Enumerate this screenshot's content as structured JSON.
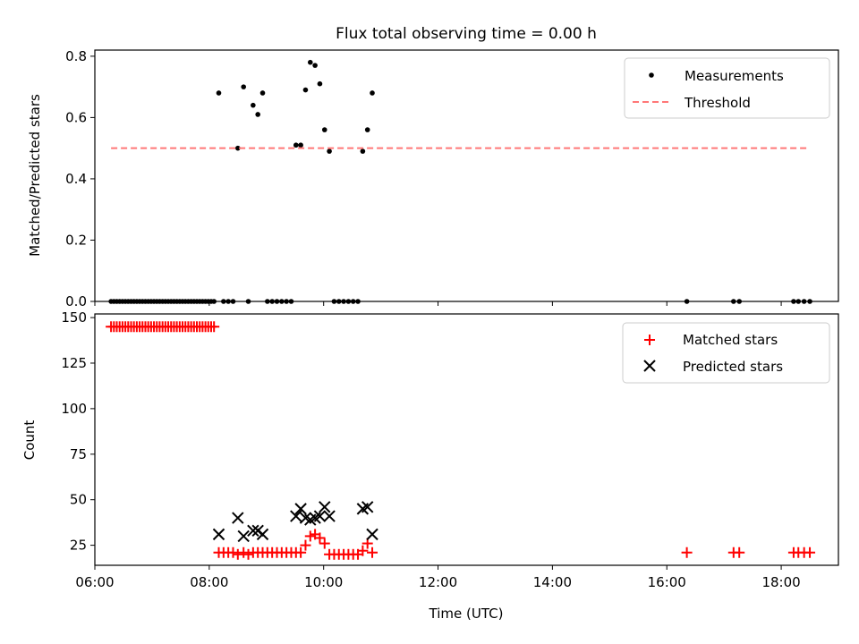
{
  "title": "Flux total observing time = 0.00 h",
  "chart_data": [
    {
      "type": "scatter",
      "ylabel": "Matched/Predicted stars",
      "xlabel": "",
      "xlim": [
        "06:00",
        "19:00"
      ],
      "ylim": [
        0,
        0.82
      ],
      "yticks": [
        "0.0",
        "0.2",
        "0.4",
        "0.6",
        "0.8"
      ],
      "legend_position": "top-right",
      "grid": false,
      "series": [
        {
          "name": "Measurements",
          "kind": "scatter",
          "color": "#000000",
          "points": [
            [
              "06:17",
              0
            ],
            [
              "06:20",
              0
            ],
            [
              "06:23",
              0
            ],
            [
              "06:26",
              0
            ],
            [
              "06:29",
              0
            ],
            [
              "06:32",
              0
            ],
            [
              "06:35",
              0
            ],
            [
              "06:38",
              0
            ],
            [
              "06:41",
              0
            ],
            [
              "06:44",
              0
            ],
            [
              "06:47",
              0
            ],
            [
              "06:50",
              0
            ],
            [
              "06:53",
              0
            ],
            [
              "06:56",
              0
            ],
            [
              "06:59",
              0
            ],
            [
              "07:02",
              0
            ],
            [
              "07:05",
              0
            ],
            [
              "07:08",
              0
            ],
            [
              "07:11",
              0
            ],
            [
              "07:14",
              0
            ],
            [
              "07:17",
              0
            ],
            [
              "07:20",
              0
            ],
            [
              "07:23",
              0
            ],
            [
              "07:26",
              0
            ],
            [
              "07:29",
              0
            ],
            [
              "07:32",
              0
            ],
            [
              "07:35",
              0
            ],
            [
              "07:38",
              0
            ],
            [
              "07:41",
              0
            ],
            [
              "07:44",
              0
            ],
            [
              "07:47",
              0
            ],
            [
              "07:50",
              0
            ],
            [
              "07:53",
              0
            ],
            [
              "07:56",
              0
            ],
            [
              "07:59",
              0
            ],
            [
              "08:02",
              0
            ],
            [
              "08:05",
              0
            ],
            [
              "08:10",
              0.68
            ],
            [
              "08:15",
              0
            ],
            [
              "08:20",
              0
            ],
            [
              "08:25",
              0
            ],
            [
              "08:30",
              0.5
            ],
            [
              "08:36",
              0.7
            ],
            [
              "08:41",
              0
            ],
            [
              "08:46",
              0.64
            ],
            [
              "08:51",
              0.61
            ],
            [
              "08:56",
              0.68
            ],
            [
              "09:01",
              0
            ],
            [
              "09:06",
              0
            ],
            [
              "09:11",
              0
            ],
            [
              "09:16",
              0
            ],
            [
              "09:21",
              0
            ],
            [
              "09:26",
              0
            ],
            [
              "09:31",
              0.51
            ],
            [
              "09:36",
              0.51
            ],
            [
              "09:41",
              0.69
            ],
            [
              "09:46",
              0.78
            ],
            [
              "09:51",
              0.77
            ],
            [
              "09:56",
              0.71
            ],
            [
              "10:01",
              0.56
            ],
            [
              "10:06",
              0.49
            ],
            [
              "10:11",
              0
            ],
            [
              "10:16",
              0
            ],
            [
              "10:21",
              0
            ],
            [
              "10:26",
              0
            ],
            [
              "10:31",
              0
            ],
            [
              "10:36",
              0
            ],
            [
              "10:41",
              0.49
            ],
            [
              "10:46",
              0.56
            ],
            [
              "10:51",
              0.68
            ],
            [
              "16:21",
              0
            ],
            [
              "17:10",
              0
            ],
            [
              "17:16",
              0
            ],
            [
              "18:13",
              0
            ],
            [
              "18:18",
              0
            ],
            [
              "18:24",
              0
            ],
            [
              "18:30",
              0
            ]
          ]
        },
        {
          "name": "Threshold",
          "kind": "line",
          "color": "#ff7777",
          "dash": true,
          "x": [
            "06:17",
            "18:30"
          ],
          "y": [
            0.5,
            0.5
          ]
        }
      ]
    },
    {
      "type": "scatter",
      "ylabel": "Count",
      "xlabel": "Time (UTC)",
      "xlim": [
        "06:00",
        "19:00"
      ],
      "ylim": [
        14,
        152
      ],
      "yticks": [
        "25",
        "50",
        "75",
        "100",
        "125",
        "150"
      ],
      "xticks": [
        "06:00",
        "08:00",
        "10:00",
        "12:00",
        "14:00",
        "16:00",
        "18:00"
      ],
      "legend_position": "top-right",
      "grid": false,
      "series": [
        {
          "name": "Matched stars",
          "kind": "plus",
          "color": "#ff0000",
          "points": [
            [
              "06:17",
              145
            ],
            [
              "06:20",
              145
            ],
            [
              "06:23",
              145
            ],
            [
              "06:26",
              145
            ],
            [
              "06:29",
              145
            ],
            [
              "06:32",
              145
            ],
            [
              "06:35",
              145
            ],
            [
              "06:38",
              145
            ],
            [
              "06:41",
              145
            ],
            [
              "06:44",
              145
            ],
            [
              "06:47",
              145
            ],
            [
              "06:50",
              145
            ],
            [
              "06:53",
              145
            ],
            [
              "06:56",
              145
            ],
            [
              "06:59",
              145
            ],
            [
              "07:02",
              145
            ],
            [
              "07:05",
              145
            ],
            [
              "07:08",
              145
            ],
            [
              "07:11",
              145
            ],
            [
              "07:14",
              145
            ],
            [
              "07:17",
              145
            ],
            [
              "07:20",
              145
            ],
            [
              "07:23",
              145
            ],
            [
              "07:26",
              145
            ],
            [
              "07:29",
              145
            ],
            [
              "07:32",
              145
            ],
            [
              "07:35",
              145
            ],
            [
              "07:38",
              145
            ],
            [
              "07:41",
              145
            ],
            [
              "07:44",
              145
            ],
            [
              "07:47",
              145
            ],
            [
              "07:50",
              145
            ],
            [
              "07:53",
              145
            ],
            [
              "07:56",
              145
            ],
            [
              "07:59",
              145
            ],
            [
              "08:02",
              145
            ],
            [
              "08:05",
              145
            ],
            [
              "08:10",
              21
            ],
            [
              "08:15",
              21
            ],
            [
              "08:20",
              21
            ],
            [
              "08:25",
              21
            ],
            [
              "08:30",
              20
            ],
            [
              "08:36",
              21
            ],
            [
              "08:41",
              20
            ],
            [
              "08:46",
              21
            ],
            [
              "08:51",
              21
            ],
            [
              "08:56",
              21
            ],
            [
              "09:01",
              21
            ],
            [
              "09:06",
              21
            ],
            [
              "09:11",
              21
            ],
            [
              "09:16",
              21
            ],
            [
              "09:21",
              21
            ],
            [
              "09:26",
              21
            ],
            [
              "09:31",
              21
            ],
            [
              "09:36",
              21
            ],
            [
              "09:41",
              25
            ],
            [
              "09:46",
              30
            ],
            [
              "09:51",
              31
            ],
            [
              "09:56",
              29
            ],
            [
              "10:01",
              26
            ],
            [
              "10:06",
              20
            ],
            [
              "10:11",
              20
            ],
            [
              "10:16",
              20
            ],
            [
              "10:21",
              20
            ],
            [
              "10:26",
              20
            ],
            [
              "10:31",
              20
            ],
            [
              "10:36",
              20
            ],
            [
              "10:41",
              22
            ],
            [
              "10:46",
              26
            ],
            [
              "10:51",
              21
            ],
            [
              "16:21",
              21
            ],
            [
              "17:10",
              21
            ],
            [
              "17:16",
              21
            ],
            [
              "18:13",
              21
            ],
            [
              "18:18",
              21
            ],
            [
              "18:24",
              21
            ],
            [
              "18:30",
              21
            ]
          ]
        },
        {
          "name": "Predicted stars",
          "kind": "x",
          "color": "#000000",
          "points": [
            [
              "08:10",
              31
            ],
            [
              "08:30",
              40
            ],
            [
              "08:36",
              30
            ],
            [
              "08:46",
              33
            ],
            [
              "08:51",
              33
            ],
            [
              "08:56",
              31
            ],
            [
              "09:31",
              41
            ],
            [
              "09:36",
              45
            ],
            [
              "09:41",
              40
            ],
            [
              "09:46",
              39
            ],
            [
              "09:51",
              40
            ],
            [
              "09:56",
              41
            ],
            [
              "10:01",
              46
            ],
            [
              "10:06",
              41
            ],
            [
              "10:41",
              45
            ],
            [
              "10:46",
              46
            ],
            [
              "10:51",
              31
            ]
          ]
        }
      ]
    }
  ]
}
